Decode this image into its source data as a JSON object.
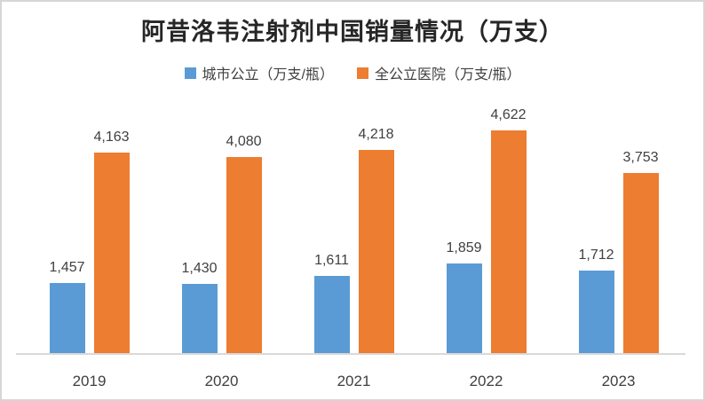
{
  "title": "阿昔洛韦注射剂中国销量情况（万支）",
  "legend": [
    {
      "label": "城市公立（万支/瓶）",
      "color": "#5B9BD5"
    },
    {
      "label": "全公立医院（万支/瓶）",
      "color": "#ED7D31"
    }
  ],
  "colors": {
    "series_blue": "#5B9BD5",
    "series_orange": "#ED7D31",
    "axis_line": "#D9D9D9",
    "text": "#404040",
    "border": "#D6D6D6"
  },
  "chart_data": {
    "type": "bar",
    "title": "阿昔洛韦注射剂中国销量情况（万支）",
    "categories": [
      "2019",
      "2020",
      "2021",
      "2022",
      "2023"
    ],
    "series": [
      {
        "name": "城市公立（万支/瓶）",
        "key": "city-public",
        "color": "#5B9BD5",
        "values": [
          1457,
          1430,
          1611,
          1859,
          1712
        ],
        "labels": [
          "1,457",
          "1,430",
          "1,611",
          "1,859",
          "1,712"
        ]
      },
      {
        "name": "全公立医院（万支/瓶）",
        "key": "all-public-hospitals",
        "color": "#ED7D31",
        "values": [
          4163,
          4080,
          4218,
          4622,
          3753
        ],
        "labels": [
          "4,163",
          "4,080",
          "4,218",
          "4,622",
          "3,753"
        ]
      }
    ],
    "xlabel": "",
    "ylabel": "",
    "ylim": [
      0,
      5000
    ],
    "grid": false,
    "legend_position": "top",
    "data_labels": true
  }
}
